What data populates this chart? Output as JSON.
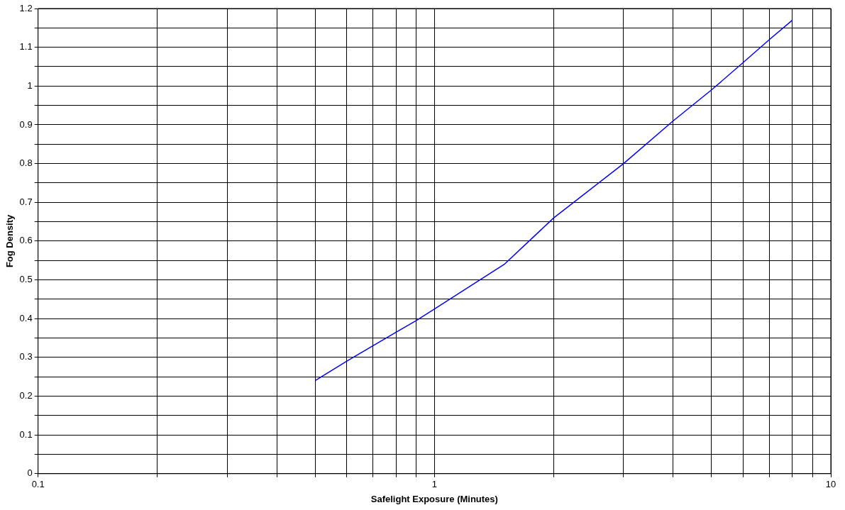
{
  "chart_data": {
    "type": "line",
    "xlabel": "Safelight Exposure (Minutes)",
    "ylabel": "Fog Density",
    "log": "x",
    "grid": true,
    "legend": false,
    "marker": "none",
    "line_style": "solid",
    "xlim": [
      0.1,
      10
    ],
    "ylim": [
      0,
      1.2
    ],
    "xticks": [
      0.1,
      {
        "value": 0.2,
        "label": null
      },
      {
        "value": 0.3,
        "label": null
      },
      {
        "value": 0.4,
        "label": null
      },
      {
        "value": 0.5,
        "label": null
      },
      {
        "value": 0.6,
        "label": null
      },
      {
        "value": 0.7,
        "label": null
      },
      {
        "value": 0.8,
        "label": null
      },
      {
        "value": 0.9,
        "label": null
      },
      1,
      {
        "value": 2,
        "label": null
      },
      {
        "value": 3,
        "label": null
      },
      {
        "value": 4,
        "label": null
      },
      {
        "value": 5,
        "label": null
      },
      {
        "value": 6,
        "label": null
      },
      {
        "value": 7,
        "label": null
      },
      {
        "value": 8,
        "label": null
      },
      {
        "value": 9,
        "label": null
      },
      10
    ],
    "yticks": [
      0,
      {
        "value": 0.05,
        "label": null
      },
      0.1,
      {
        "value": 0.15,
        "label": null
      },
      0.2,
      {
        "value": 0.25,
        "label": null
      },
      0.3,
      {
        "value": 0.35,
        "label": null
      },
      0.4,
      {
        "value": 0.45,
        "label": null
      },
      0.5,
      {
        "value": 0.55,
        "label": null
      },
      0.6,
      {
        "value": 0.65,
        "label": null
      },
      0.7,
      {
        "value": 0.75,
        "label": null
      },
      0.8,
      {
        "value": 0.85,
        "label": null
      },
      0.9,
      {
        "value": 0.95,
        "label": null
      },
      1,
      {
        "value": 1.05,
        "label": null
      },
      1.1,
      {
        "value": 1.15,
        "label": null
      },
      1.2
    ],
    "series": [
      {
        "color": "#0000ff",
        "x": [
          0.5,
          0.6,
          0.7,
          0.8,
          0.9,
          1,
          1.5,
          2,
          3,
          4,
          5,
          6,
          7,
          8
        ],
        "values": [
          0.24,
          0.29,
          0.33,
          0.365,
          0.395,
          0.425,
          0.54,
          0.66,
          0.8,
          0.91,
          0.99,
          1.06,
          1.12,
          1.17
        ]
      }
    ]
  }
}
